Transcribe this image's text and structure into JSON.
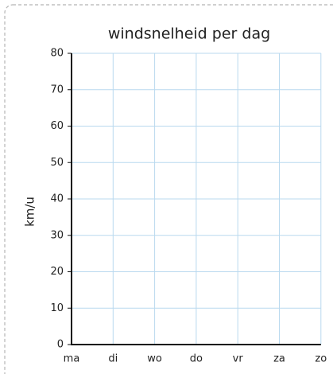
{
  "chart_data": {
    "type": "bar",
    "title": "windsnelheid per dag",
    "y_label": "km/u",
    "categories": [
      "ma",
      "di",
      "wo",
      "do",
      "vr",
      "za",
      "zo"
    ],
    "ylim": [
      0,
      80
    ],
    "yticks": [
      0,
      10,
      20,
      30,
      40,
      50,
      60,
      70,
      80
    ],
    "grid": true,
    "grid_color": "#b9d9ef",
    "axis_color": "#111111"
  }
}
